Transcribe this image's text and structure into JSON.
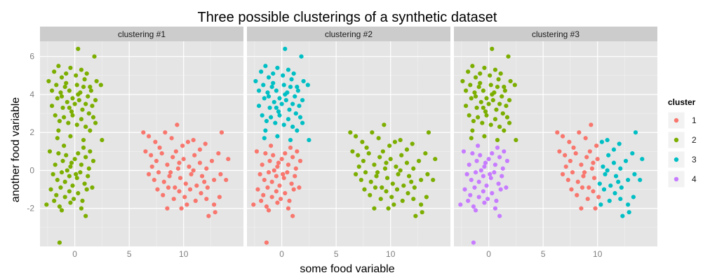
{
  "chart_data": {
    "type": "scatter",
    "title": "Three possible clusterings of a synthetic dataset",
    "xlabel": "some food variable",
    "ylabel": "another food variable",
    "xlim": [
      -3.2,
      15.5
    ],
    "ylim": [
      -4.0,
      6.8
    ],
    "x_ticks": [
      0,
      5,
      10
    ],
    "y_ticks": [
      -2,
      0,
      2,
      4,
      6
    ],
    "grid": true,
    "legend": {
      "title": "cluster",
      "position": "right",
      "entries": [
        {
          "label": "1",
          "color": "#F8766D"
        },
        {
          "label": "2",
          "color": "#7CAE00"
        },
        {
          "label": "3",
          "color": "#00BFC4"
        },
        {
          "label": "4",
          "color": "#C77CFF"
        }
      ]
    },
    "facets": [
      "clustering #1",
      "clustering #2",
      "clustering #3"
    ],
    "points": [
      [
        -1.9,
        5.2
      ],
      [
        -1.5,
        5.5
      ],
      [
        -1.2,
        4.9
      ],
      [
        -0.8,
        5.1
      ],
      [
        -0.4,
        5.4
      ],
      [
        0.1,
        5.0
      ],
      [
        0.3,
        6.4
      ],
      [
        0.6,
        5.3
      ],
      [
        1.1,
        5.1
      ],
      [
        1.4,
        4.4
      ],
      [
        1.8,
        6.0
      ],
      [
        2.0,
        4.7
      ],
      [
        2.4,
        4.5
      ],
      [
        -2.4,
        4.7
      ],
      [
        -2.1,
        4.2
      ],
      [
        -1.7,
        4.5
      ],
      [
        -1.3,
        4.1
      ],
      [
        -0.9,
        4.4
      ],
      [
        -0.5,
        4.2
      ],
      [
        -0.2,
        3.8
      ],
      [
        0.2,
        4.5
      ],
      [
        0.5,
        4.1
      ],
      [
        0.8,
        4.4
      ],
      [
        1.2,
        3.9
      ],
      [
        1.5,
        4.2
      ],
      [
        1.9,
        3.7
      ],
      [
        -2.1,
        3.4
      ],
      [
        -1.6,
        3.8
      ],
      [
        -1.1,
        3.3
      ],
      [
        -0.7,
        3.6
      ],
      [
        -0.3,
        3.1
      ],
      [
        0.0,
        3.5
      ],
      [
        0.4,
        3.7
      ],
      [
        0.7,
        3.2
      ],
      [
        1.0,
        3.5
      ],
      [
        1.3,
        3.0
      ],
      [
        1.7,
        2.8
      ],
      [
        -1.8,
        2.9
      ],
      [
        -1.4,
        2.6
      ],
      [
        -1.0,
        2.8
      ],
      [
        -0.6,
        2.5
      ],
      [
        -0.2,
        2.9
      ],
      [
        0.2,
        2.4
      ],
      [
        0.6,
        2.7
      ],
      [
        1.0,
        2.3
      ],
      [
        1.4,
        2.1
      ],
      [
        -1.5,
        2.1
      ],
      [
        -0.4,
        1.8
      ],
      [
        0.8,
        1.6
      ],
      [
        1.9,
        2.5
      ],
      [
        2.5,
        1.6
      ],
      [
        -1.2,
        3.9
      ],
      [
        0.9,
        4.8
      ],
      [
        -0.8,
        4.6
      ],
      [
        0.3,
        4.0
      ],
      [
        -0.5,
        3.3
      ],
      [
        1.6,
        3.4
      ],
      [
        -1.6,
        1.7
      ],
      [
        -2.3,
        1.0
      ],
      [
        -1.8,
        0.3
      ],
      [
        -1.5,
        0.9
      ],
      [
        -1.1,
        0.5
      ],
      [
        -0.8,
        0.8
      ],
      [
        -0.4,
        0.2
      ],
      [
        0.0,
        0.6
      ],
      [
        0.3,
        0.9
      ],
      [
        0.6,
        0.3
      ],
      [
        1.0,
        0.7
      ],
      [
        1.3,
        0.1
      ],
      [
        1.7,
        0.5
      ],
      [
        -2.0,
        -0.2
      ],
      [
        -1.6,
        -0.5
      ],
      [
        -1.2,
        -0.1
      ],
      [
        -0.9,
        -0.6
      ],
      [
        -0.5,
        -0.3
      ],
      [
        -0.2,
        -0.8
      ],
      [
        0.2,
        -0.4
      ],
      [
        0.5,
        -0.1
      ],
      [
        0.9,
        -0.7
      ],
      [
        1.2,
        -0.3
      ],
      [
        1.6,
        -0.9
      ],
      [
        -2.2,
        -1.0
      ],
      [
        -1.7,
        -1.3
      ],
      [
        -1.3,
        -0.9
      ],
      [
        -0.9,
        -1.4
      ],
      [
        -0.5,
        -1.1
      ],
      [
        -0.1,
        -1.5
      ],
      [
        0.3,
        -1.2
      ],
      [
        0.7,
        -1.6
      ],
      [
        1.1,
        -1.0
      ],
      [
        -1.9,
        -1.6
      ],
      [
        -1.4,
        -1.9
      ],
      [
        -0.4,
        -1.7
      ],
      [
        0.6,
        -2.0
      ],
      [
        1.0,
        -2.4
      ],
      [
        -2.6,
        -1.8
      ],
      [
        -1.2,
        -2.1
      ],
      [
        -0.3,
        0.4
      ],
      [
        0.8,
        1.2
      ],
      [
        -1.0,
        1.3
      ],
      [
        0.1,
        -0.2
      ],
      [
        -0.7,
        0.0
      ],
      [
        1.4,
        1.0
      ],
      [
        -1.4,
        -3.8
      ],
      [
        6.3,
        2.0
      ],
      [
        6.8,
        1.8
      ],
      [
        7.4,
        1.5
      ],
      [
        7.8,
        1.2
      ],
      [
        8.3,
        2.0
      ],
      [
        8.9,
        1.7
      ],
      [
        9.4,
        2.4
      ],
      [
        9.9,
        1.3
      ],
      [
        10.4,
        1.5
      ],
      [
        10.9,
        1.6
      ],
      [
        11.5,
        1.1
      ],
      [
        12.0,
        1.4
      ],
      [
        13.5,
        2.0
      ],
      [
        6.5,
        1.0
      ],
      [
        7.0,
        0.8
      ],
      [
        7.5,
        0.5
      ],
      [
        8.0,
        0.9
      ],
      [
        8.5,
        0.3
      ],
      [
        9.0,
        0.7
      ],
      [
        9.5,
        0.1
      ],
      [
        10.0,
        0.6
      ],
      [
        10.5,
        0.2
      ],
      [
        11.0,
        0.8
      ],
      [
        11.5,
        0.4
      ],
      [
        12.1,
        0.1
      ],
      [
        12.6,
        0.5
      ],
      [
        13.2,
        0.9
      ],
      [
        14.1,
        0.6
      ],
      [
        6.8,
        -0.2
      ],
      [
        7.3,
        -0.5
      ],
      [
        7.7,
        -0.1
      ],
      [
        8.2,
        -0.6
      ],
      [
        8.7,
        -0.3
      ],
      [
        9.2,
        -0.9
      ],
      [
        9.7,
        -0.4
      ],
      [
        10.2,
        -0.7
      ],
      [
        10.7,
        -0.2
      ],
      [
        11.2,
        -0.8
      ],
      [
        11.7,
        -0.3
      ],
      [
        12.2,
        -0.9
      ],
      [
        12.8,
        -0.5
      ],
      [
        13.4,
        -0.2
      ],
      [
        13.9,
        -0.5
      ],
      [
        7.6,
        -1.0
      ],
      [
        8.1,
        -1.3
      ],
      [
        8.6,
        -0.9
      ],
      [
        9.1,
        -1.5
      ],
      [
        9.6,
        -1.1
      ],
      [
        10.1,
        -1.4
      ],
      [
        10.6,
        -1.0
      ],
      [
        11.1,
        -1.6
      ],
      [
        11.6,
        -1.2
      ],
      [
        12.1,
        -1.5
      ],
      [
        12.8,
        -1.8
      ],
      [
        13.3,
        -1.4
      ],
      [
        8.5,
        -2.0
      ],
      [
        9.8,
        -2.0
      ],
      [
        12.3,
        -2.4
      ],
      [
        12.9,
        -2.2
      ],
      [
        10.3,
        -1.8
      ],
      [
        9.3,
        1.0
      ],
      [
        8.8,
        -0.1
      ],
      [
        10.9,
        0.0
      ],
      [
        7.1,
        0.2
      ],
      [
        9.6,
        0.4
      ],
      [
        11.9,
        -0.6
      ]
    ],
    "series": [
      {
        "facet": "clustering #1",
        "assignment": [
          {
            "from": 0,
            "to": 103,
            "cluster": "2"
          },
          {
            "from": 104,
            "to": 169,
            "cluster": "1"
          }
        ]
      },
      {
        "facet": "clustering #2",
        "assignment": [
          {
            "from": 0,
            "to": 57,
            "cluster": "3"
          },
          {
            "from": 58,
            "to": 103,
            "cluster": "1"
          },
          {
            "from": 104,
            "to": 169,
            "cluster": "2"
          }
        ]
      },
      {
        "facet": "clustering #3",
        "assignment": [
          {
            "from": 0,
            "to": 57,
            "cluster": "2"
          },
          {
            "from": 58,
            "to": 103,
            "cluster": "4"
          },
          {
            "from": 104,
            "to": 169,
            "split_x": 10.2,
            "left_cluster": "1",
            "right_cluster": "3"
          }
        ]
      }
    ]
  }
}
